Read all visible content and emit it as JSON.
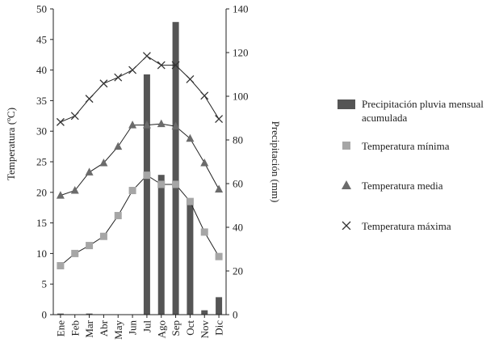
{
  "chart_data": {
    "type": "bar+line",
    "categories": [
      "Ene",
      "Feb",
      "Mar",
      "Abr",
      "May",
      "Jun",
      "Jul",
      "Ago",
      "Sep",
      "Oct",
      "Nov",
      "Dic"
    ],
    "ylabel_left": "Temperatura (ºC)",
    "ylabel_right": "Precipitación (mm)",
    "ylim_left": [
      0,
      50
    ],
    "ylim_right": [
      0,
      140
    ],
    "yticks_left": [
      "0",
      "5",
      "10",
      "15",
      "20",
      "25",
      "30",
      "35",
      "40",
      "45",
      "50"
    ],
    "yticks_right": [
      "0",
      "20",
      "40",
      "60",
      "80",
      "100",
      "120",
      "140"
    ],
    "series": [
      {
        "name": "Precipitación pluvia mensual acumulada",
        "axis": "right",
        "kind": "bar",
        "color": "#555555",
        "values": [
          0.5,
          0,
          0.5,
          0,
          0,
          0,
          110,
          64,
          134,
          51,
          2,
          8
        ]
      },
      {
        "name": "Temperatura mínima",
        "axis": "left",
        "kind": "line",
        "marker": "square",
        "color": "#a6a6a6",
        "values": [
          8,
          10,
          11.3,
          12.8,
          16.2,
          20.3,
          22.8,
          21.3,
          21.3,
          18.5,
          13.5,
          9.5
        ]
      },
      {
        "name": "Temperatura media",
        "axis": "left",
        "kind": "line",
        "marker": "triangle",
        "color": "#6b6b6b",
        "values": [
          19.5,
          20.3,
          23.3,
          24.8,
          27.5,
          31,
          31,
          31.2,
          30.8,
          28.8,
          24.8,
          20.5
        ]
      },
      {
        "name": "Temperatura máxima",
        "axis": "left",
        "kind": "line",
        "marker": "x",
        "color": "#333333",
        "values": [
          31.5,
          32.5,
          35.3,
          37.8,
          38.8,
          40,
          42.3,
          40.8,
          40.8,
          38.5,
          35.8,
          32
        ]
      }
    ]
  },
  "legend": {
    "items": [
      {
        "label": "Precipitación pluvia mensual acumulada"
      },
      {
        "label": "Temperatura mínima"
      },
      {
        "label": "Temperatura media"
      },
      {
        "label": "Temperatura máxima"
      }
    ]
  }
}
